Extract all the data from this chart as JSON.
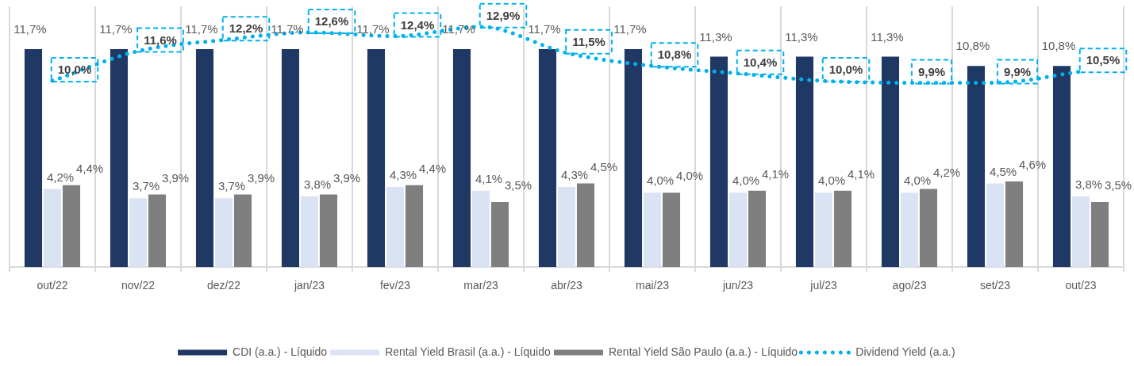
{
  "chart_data": {
    "type": "bar",
    "categories": [
      "out/22",
      "nov/22",
      "dez/22",
      "jan/23",
      "fev/23",
      "mar/23",
      "abr/23",
      "mai/23",
      "jun/23",
      "jul/23",
      "ago/23",
      "set/23",
      "out/23"
    ],
    "series": [
      {
        "name": "CDI (a.a.) - Líquido",
        "color": "#203864",
        "values": [
          11.7,
          11.7,
          11.7,
          11.7,
          11.7,
          11.7,
          11.7,
          11.7,
          11.3,
          11.3,
          11.3,
          10.8,
          10.8
        ],
        "value_labels": [
          "11,7%",
          "11,7%",
          "11,7%",
          "11,7%",
          "11,7%",
          "11,7%",
          "11,7%",
          "11,7%",
          "11,3%",
          "11,3%",
          "11,3%",
          "10,8%",
          "10,8%"
        ]
      },
      {
        "name": "Rental Yield Brasil (a.a.) - Líquido",
        "color": "#dae3f3",
        "values": [
          4.2,
          3.7,
          3.7,
          3.8,
          4.3,
          4.1,
          4.3,
          4.0,
          4.0,
          4.0,
          4.0,
          4.5,
          3.8
        ],
        "value_labels": [
          "4,2%",
          "3,7%",
          "3,7%",
          "3,8%",
          "4,3%",
          "4,1%",
          "4,3%",
          "4,0%",
          "4,0%",
          "4,0%",
          "4,0%",
          "4,5%",
          "3,8%"
        ]
      },
      {
        "name": "Rental Yield São Paulo (a.a.) - Líquido",
        "color": "#7f7f7f",
        "values": [
          4.4,
          3.9,
          3.9,
          3.9,
          4.4,
          3.5,
          4.5,
          4.0,
          4.1,
          4.1,
          4.2,
          4.6,
          3.5
        ],
        "value_labels": [
          "4,4%",
          "3,9%",
          "3,9%",
          "3,9%",
          "4,4%",
          "3,5%",
          "4,5%",
          "4,0%",
          "4,1%",
          "4,1%",
          "4,2%",
          "4,6%",
          "3,5%"
        ]
      },
      {
        "name": "Dividend Yield (a.a.)",
        "type": "line",
        "color": "#00b0f0",
        "line_style": "dotted",
        "marker": "none",
        "values": [
          10.0,
          11.6,
          12.2,
          12.6,
          12.4,
          12.9,
          11.5,
          10.8,
          10.4,
          10.0,
          9.9,
          9.9,
          10.5
        ],
        "value_labels": [
          "10,0%",
          "11,6%",
          "12,2%",
          "12,6%",
          "12,4%",
          "12,9%",
          "11,5%",
          "10,8%",
          "10,4%",
          "10,0%",
          "9,9%",
          "9,9%",
          "10,5%"
        ]
      }
    ],
    "grid": "x",
    "legend": "bottom",
    "tick_labels": "x"
  }
}
